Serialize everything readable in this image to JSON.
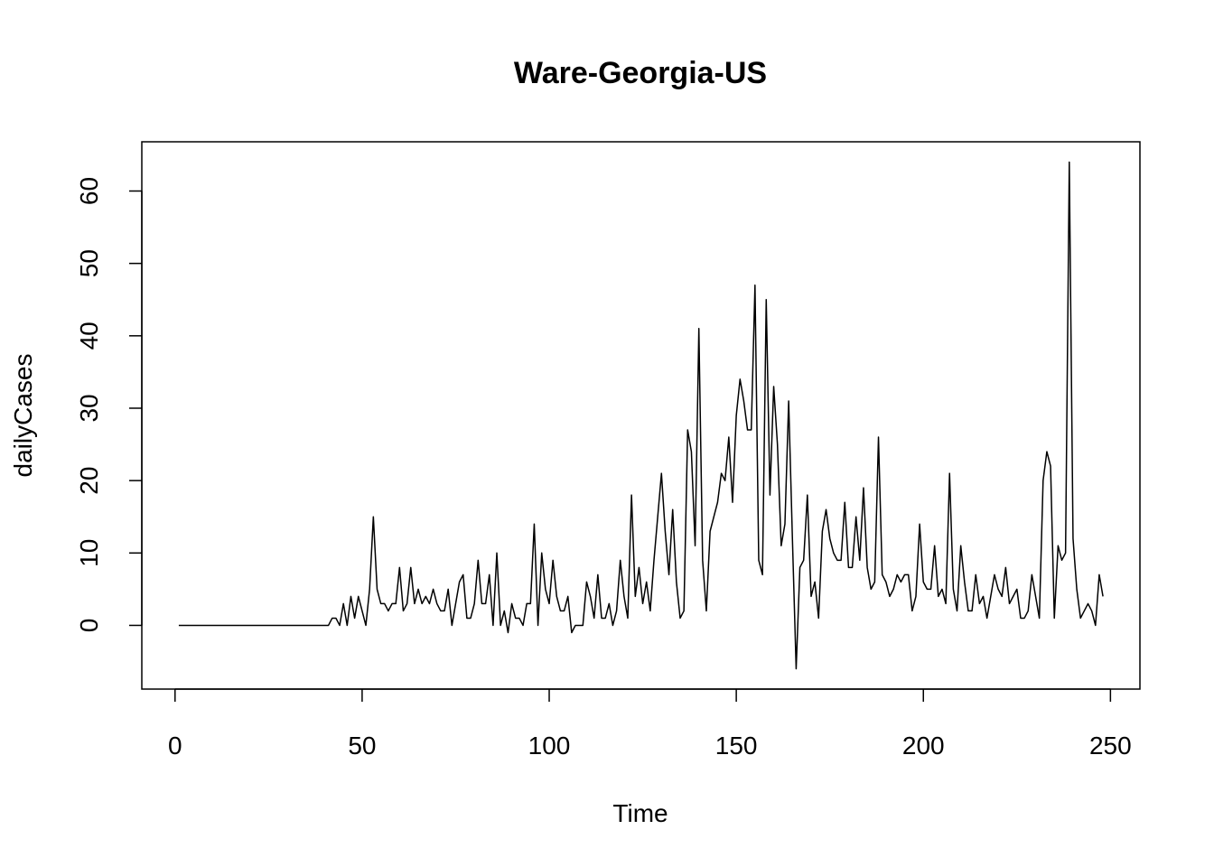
{
  "chart_data": {
    "type": "line",
    "title": "Ware-Georgia-US",
    "x_label": "Time",
    "y_label": "dailyCases",
    "color": "#000000",
    "x": [
      1,
      2,
      3,
      4,
      5,
      6,
      7,
      8,
      9,
      10,
      11,
      12,
      13,
      14,
      15,
      16,
      17,
      18,
      19,
      20,
      21,
      22,
      23,
      24,
      25,
      26,
      27,
      28,
      29,
      30,
      31,
      32,
      33,
      34,
      35,
      36,
      37,
      38,
      39,
      40,
      41,
      42,
      43,
      44,
      45,
      46,
      47,
      48,
      49,
      50,
      51,
      52,
      53,
      54,
      55,
      56,
      57,
      58,
      59,
      60,
      61,
      62,
      63,
      64,
      65,
      66,
      67,
      68,
      69,
      70,
      71,
      72,
      73,
      74,
      75,
      76,
      77,
      78,
      79,
      80,
      81,
      82,
      83,
      84,
      85,
      86,
      87,
      88,
      89,
      90,
      91,
      92,
      93,
      94,
      95,
      96,
      97,
      98,
      99,
      100,
      101,
      102,
      103,
      104,
      105,
      106,
      107,
      108,
      109,
      110,
      111,
      112,
      113,
      114,
      115,
      116,
      117,
      118,
      119,
      120,
      121,
      122,
      123,
      124,
      125,
      126,
      127,
      128,
      129,
      130,
      131,
      132,
      133,
      134,
      135,
      136,
      137,
      138,
      139,
      140,
      141,
      142,
      143,
      144,
      145,
      146,
      147,
      148,
      149,
      150,
      151,
      152,
      153,
      154,
      155,
      156,
      157,
      158,
      159,
      160,
      161,
      162,
      163,
      164,
      165,
      166,
      167,
      168,
      169,
      170,
      171,
      172,
      173,
      174,
      175,
      176,
      177,
      178,
      179,
      180,
      181,
      182,
      183,
      184,
      185,
      186,
      187,
      188,
      189,
      190,
      191,
      192,
      193,
      194,
      195,
      196,
      197,
      198,
      199,
      200,
      201,
      202,
      203,
      204,
      205,
      206,
      207,
      208,
      209,
      210,
      211,
      212,
      213,
      214,
      215,
      216,
      217,
      218,
      219,
      220,
      221,
      222,
      223,
      224,
      225,
      226,
      227,
      228,
      229,
      230,
      231,
      232,
      233,
      234,
      235,
      236,
      237,
      238,
      239,
      240,
      241,
      242,
      243,
      244,
      245,
      246,
      247,
      248
    ],
    "values": [
      0,
      0,
      0,
      0,
      0,
      0,
      0,
      0,
      0,
      0,
      0,
      0,
      0,
      0,
      0,
      0,
      0,
      0,
      0,
      0,
      0,
      0,
      0,
      0,
      0,
      0,
      0,
      0,
      0,
      0,
      0,
      0,
      0,
      0,
      0,
      0,
      0,
      0,
      0,
      0,
      0,
      1,
      1,
      0,
      3,
      0,
      4,
      1,
      4,
      2,
      0,
      5,
      15,
      5,
      3,
      3,
      2,
      3,
      3,
      8,
      2,
      3,
      8,
      3,
      5,
      3,
      4,
      3,
      5,
      3,
      2,
      2,
      5,
      0,
      3,
      6,
      7,
      1,
      1,
      3,
      9,
      3,
      3,
      7,
      0,
      10,
      0,
      2,
      -1,
      3,
      1,
      1,
      0,
      3,
      3,
      14,
      0,
      10,
      5,
      3,
      9,
      4,
      2,
      2,
      4,
      -1,
      0,
      0,
      0,
      6,
      4,
      1,
      7,
      1,
      1,
      3,
      0,
      2,
      9,
      4,
      1,
      18,
      4,
      8,
      3,
      6,
      2,
      9,
      15,
      21,
      13,
      7,
      16,
      6,
      1,
      2,
      27,
      24,
      11,
      41,
      9,
      2,
      13,
      15,
      17,
      21,
      20,
      26,
      17,
      29,
      34,
      31,
      27,
      27,
      47,
      9,
      7,
      45,
      18,
      33,
      25,
      11,
      14,
      31,
      12,
      -6,
      8,
      9,
      18,
      4,
      6,
      1,
      13,
      16,
      12,
      10,
      9,
      9,
      17,
      8,
      8,
      15,
      9,
      19,
      8,
      5,
      6,
      26,
      7,
      6,
      4,
      5,
      7,
      6,
      7,
      7,
      2,
      4,
      14,
      6,
      5,
      5,
      11,
      4,
      5,
      3,
      21,
      5,
      2,
      11,
      6,
      2,
      2,
      7,
      3,
      4,
      1,
      4,
      7,
      5,
      4,
      8,
      3,
      4,
      5,
      1,
      1,
      2,
      7,
      4,
      1,
      20,
      24,
      22,
      1,
      11,
      9,
      10,
      64,
      12,
      5,
      1,
      2,
      3,
      2,
      0,
      7,
      4
    ],
    "xlim": [
      -8.88,
      257.88
    ],
    "ylim": [
      -8.8,
      66.8
    ],
    "xticks": [
      0,
      50,
      100,
      150,
      200,
      250
    ],
    "yticks": [
      0,
      10,
      20,
      30,
      40,
      50,
      60
    ]
  }
}
